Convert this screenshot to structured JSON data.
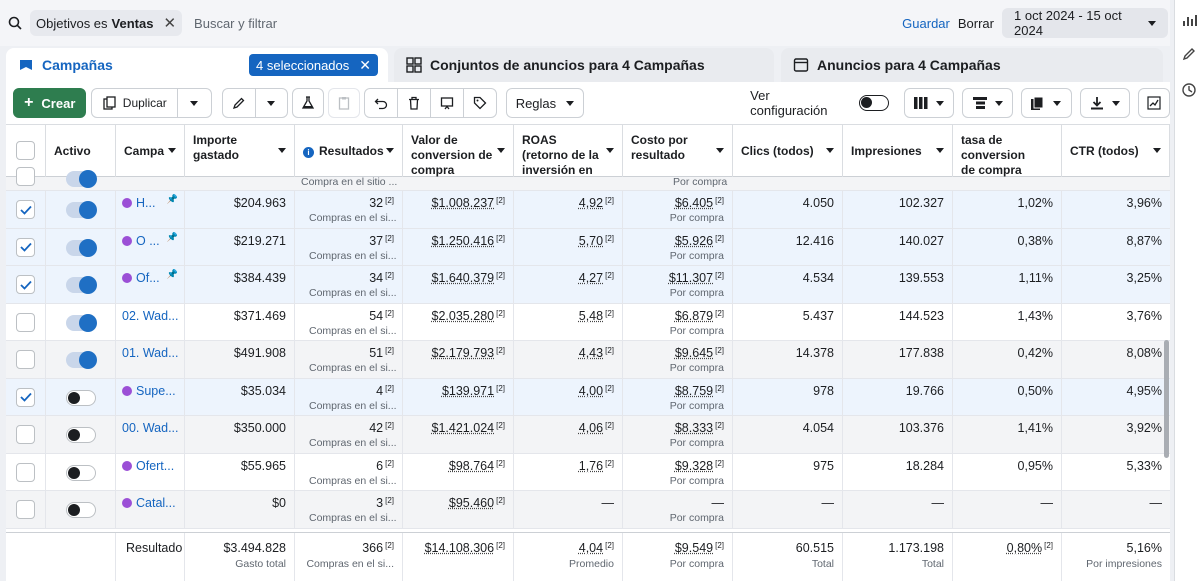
{
  "filter_bar": {
    "chip_prefix": "Objetivos es",
    "chip_value": "Ventas",
    "search_placeholder": "Buscar y filtrar",
    "save_label": "Guardar",
    "clear_label": "Borrar",
    "date_range": "1 oct 2024 - 15 oct 2024"
  },
  "tabs": [
    {
      "label": "Campañas",
      "icon": "campaigns-icon",
      "active": true,
      "badge": "4 seleccionados"
    },
    {
      "label": "Conjuntos de anuncios para 4 Campañas",
      "icon": "adsets-grid-icon",
      "active": false
    },
    {
      "label": "Anuncios para 4 Campañas",
      "icon": "ads-window-icon",
      "active": false
    }
  ],
  "toolbar": {
    "create_label": "Crear",
    "duplicate_label": "Duplicar",
    "rules_label": "Reglas",
    "view_setup_label": "Ver configuración"
  },
  "columns": [
    "Activo",
    "Campa",
    "Importe gastado",
    "Resultados",
    "Valor de conversion de compra",
    "ROAS (retorno de la inversión en",
    "Costo por resultado",
    "Clics (todos)",
    "Impresiones",
    "tasa de conversion de compra",
    "CTR (todos)"
  ],
  "partial_row": {
    "results_sub": "Compra en el sitio ...",
    "cpr_sub": "Por compra"
  },
  "rows": [
    {
      "checked": true,
      "active": true,
      "selected": true,
      "name": "H...",
      "pinned": true,
      "spend": "$204.963",
      "results": "32",
      "results_sub": "Compras en el si...",
      "conv_value": "$1.008.237",
      "roas": "4,92",
      "cpr": "$6.405",
      "cpr_sub": "Por compra",
      "clicks": "4.050",
      "impressions": "102.327",
      "conv_rate": "1,02%",
      "ctr": "3,96%"
    },
    {
      "checked": true,
      "active": true,
      "selected": true,
      "name": "O ...",
      "pinned": true,
      "spend": "$219.271",
      "results": "37",
      "results_sub": "Compras en el si...",
      "conv_value": "$1.250.416",
      "roas": "5,70",
      "cpr": "$5.926",
      "cpr_sub": "Por compra",
      "clicks": "12.416",
      "impressions": "140.027",
      "conv_rate": "0,38%",
      "ctr": "8,87%"
    },
    {
      "checked": true,
      "active": true,
      "selected": true,
      "name": "Of...",
      "pinned": true,
      "spend": "$384.439",
      "results": "34",
      "results_sub": "Compras en el si...",
      "conv_value": "$1.640.379",
      "roas": "4,27",
      "cpr": "$11.307",
      "cpr_sub": "Por compra",
      "clicks": "4.534",
      "impressions": "139.553",
      "conv_rate": "1,11%",
      "ctr": "3,25%"
    },
    {
      "checked": false,
      "active": true,
      "selected": false,
      "name": "02. Wad...",
      "pinned": false,
      "spend": "$371.469",
      "results": "54",
      "results_sub": "Compras en el si...",
      "conv_value": "$2.035.280",
      "roas": "5,48",
      "cpr": "$6.879",
      "cpr_sub": "Por compra",
      "clicks": "5.437",
      "impressions": "144.523",
      "conv_rate": "1,43%",
      "ctr": "3,76%"
    },
    {
      "checked": false,
      "active": true,
      "selected": false,
      "alt": true,
      "name": "01. Wad...",
      "pinned": false,
      "spend": "$491.908",
      "results": "51",
      "results_sub": "Compras en el si...",
      "conv_value": "$2.179.793",
      "roas": "4,43",
      "cpr": "$9.645",
      "cpr_sub": "Por compra",
      "clicks": "14.378",
      "impressions": "177.838",
      "conv_rate": "0,42%",
      "ctr": "8,08%"
    },
    {
      "checked": true,
      "active": false,
      "selected": true,
      "name": "Supe...",
      "pinned": false,
      "dot": true,
      "spend": "$35.034",
      "results": "4",
      "results_sub": "Compras en el si...",
      "conv_value": "$139.971",
      "roas": "4,00",
      "cpr": "$8.759",
      "cpr_sub": "Por compra",
      "clicks": "978",
      "impressions": "19.766",
      "conv_rate": "0,50%",
      "ctr": "4,95%"
    },
    {
      "checked": false,
      "active": false,
      "selected": false,
      "alt": true,
      "name": "00. Wad...",
      "pinned": false,
      "spend": "$350.000",
      "results": "42",
      "results_sub": "Compras en el si...",
      "conv_value": "$1.421.024",
      "roas": "4,06",
      "cpr": "$8.333",
      "cpr_sub": "Por compra",
      "clicks": "4.054",
      "impressions": "103.376",
      "conv_rate": "1,41%",
      "ctr": "3,92%"
    },
    {
      "checked": false,
      "active": false,
      "selected": false,
      "name": "Ofert...",
      "pinned": false,
      "dot": true,
      "spend": "$55.965",
      "results": "6",
      "results_sub": "Compras en el si...",
      "conv_value": "$98.764",
      "roas": "1,76",
      "cpr": "$9.328",
      "cpr_sub": "Por compra",
      "clicks": "975",
      "impressions": "18.284",
      "conv_rate": "0,95%",
      "ctr": "5,33%"
    },
    {
      "checked": false,
      "active": false,
      "selected": false,
      "alt": true,
      "name": "Catal...",
      "pinned": false,
      "dot": true,
      "spend": "$0",
      "results": "3",
      "results_sub": "Compras en el si...",
      "conv_value": "$95.460",
      "roas": "—",
      "cpr": "—",
      "cpr_sub": "Por compra",
      "clicks": "—",
      "impressions": "—",
      "conv_rate": "—",
      "ctr": "—"
    }
  ],
  "totals": {
    "label": "Resultado",
    "spend": "$3.494.828",
    "spend_sub": "Gasto total",
    "results": "366",
    "results_sub": "Compras en el si...",
    "conv_value": "$14.108.306",
    "roas": "4,04",
    "roas_sub": "Promedio",
    "cpr": "$9.549",
    "cpr_sub": "Por compra",
    "clicks": "60.515",
    "clicks_sub": "Total",
    "impressions": "1.173.198",
    "impressions_sub": "Total",
    "conv_rate": "0,80%",
    "ctr": "5,16%",
    "ctr_sub": "Por impresiones"
  },
  "footnote_marker": "[2]",
  "colors": {
    "accent": "#1565c0",
    "create": "#2e7d4f",
    "purple_dot": "#9b4fd6",
    "selected_row": "#edf4fd"
  }
}
